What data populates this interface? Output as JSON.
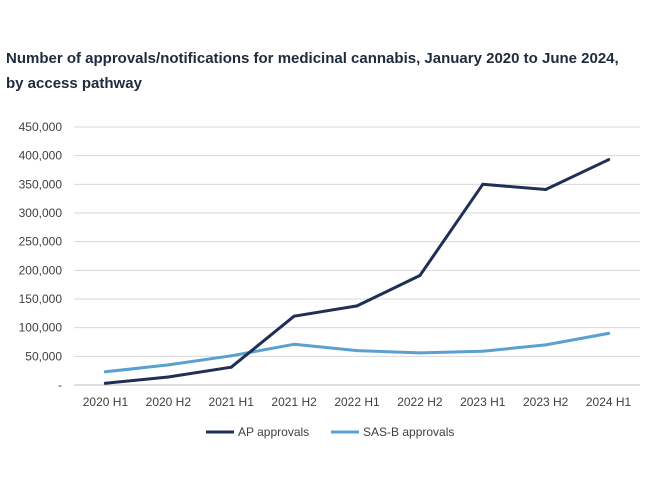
{
  "chart_data": {
    "type": "line",
    "title_line1": "Number of approvals/notifications for medicinal cannabis, January 2020 to June 2024,",
    "title_line2": "by access pathway",
    "categories": [
      "2020 H1",
      "2020 H2",
      "2021 H1",
      "2021 H2",
      "2022 H1",
      "2022 H2",
      "2023 H1",
      "2023 H2",
      "2024 H1"
    ],
    "y_ticks": [
      0,
      50000,
      100000,
      150000,
      200000,
      250000,
      300000,
      350000,
      400000,
      450000
    ],
    "y_tick_labels": [
      "-",
      "50,000",
      "100,000",
      "150,000",
      "200,000",
      "250,000",
      "300,000",
      "350,000",
      "400,000",
      "450,000"
    ],
    "ylim": [
      0,
      450000
    ],
    "grid": true,
    "legend_position": "bottom",
    "series": [
      {
        "name": "AP approvals",
        "color": "#1f2f56",
        "values": [
          3000,
          14000,
          31000,
          120000,
          138000,
          191000,
          350000,
          341000,
          393000
        ]
      },
      {
        "name": "SAS-B approvals",
        "color": "#5aa0d0",
        "values": [
          23000,
          35000,
          51000,
          71000,
          60000,
          56000,
          59000,
          70000,
          90000
        ]
      }
    ]
  }
}
